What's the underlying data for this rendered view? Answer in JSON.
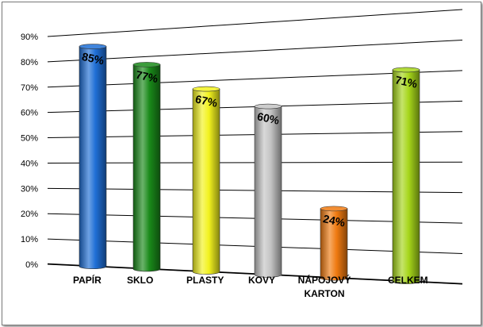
{
  "chart_data": {
    "type": "bar",
    "style": "3d-cylinder",
    "categories": [
      "PAPÍR",
      "SKLO",
      "PLASTY",
      "KOVY",
      "NÁPOJOVÝ KARTON",
      "CELKEM"
    ],
    "category_lines": [
      [
        "PAPÍR"
      ],
      [
        "SKLO"
      ],
      [
        "PLASTY"
      ],
      [
        "KOVY"
      ],
      [
        "NÁPOJOVÝ",
        "KARTON"
      ],
      [
        "CELKEM"
      ]
    ],
    "values": [
      85,
      77,
      67,
      60,
      24,
      71
    ],
    "data_labels": [
      "85%",
      "77%",
      "67%",
      "60%",
      "24%",
      "71%"
    ],
    "colors": [
      "#1f6fd6",
      "#1a8a1a",
      "#f2f21e",
      "#c4c4c4",
      "#f07a10",
      "#a6d61a"
    ],
    "yticks": [
      "0%",
      "10%",
      "20%",
      "30%",
      "40%",
      "50%",
      "60%",
      "70%",
      "80%",
      "90%"
    ],
    "ylim": [
      0,
      90
    ],
    "grid": true,
    "legend": "none"
  }
}
